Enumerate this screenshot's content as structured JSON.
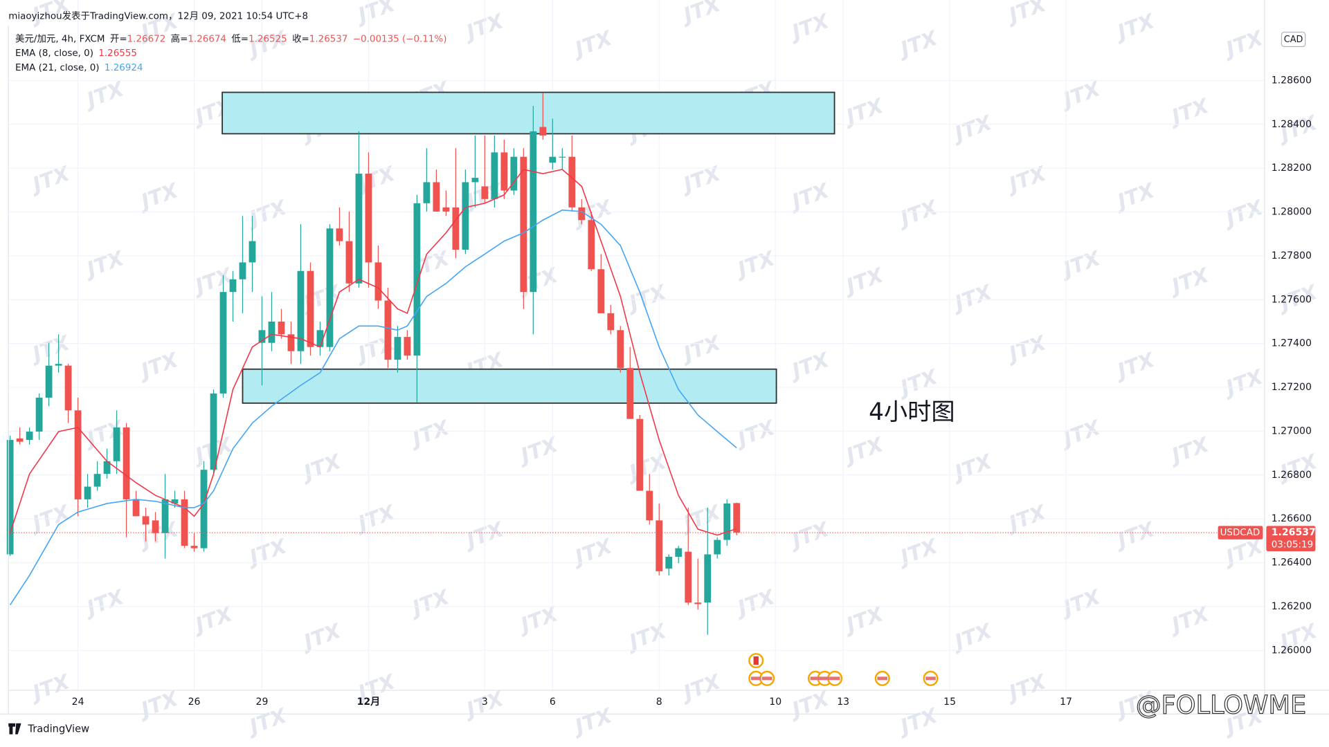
{
  "header": "miaoyizhou发表于TradingView.com，12月 09, 2021 10:54 UTC+8",
  "chart_data": {
    "type": "candlestick",
    "symbol_line": "美元/加元, 4h, FXCM",
    "ohlc_legend": [
      [
        "开=",
        "1.26672"
      ],
      [
        "高=",
        "1.26674"
      ],
      [
        "低=",
        "1.26525"
      ],
      [
        "收=",
        "1.26537"
      ]
    ],
    "change": "−0.00135 (−0.11%)",
    "currency": "CAD",
    "annotation": "4小时图",
    "watermark": "JTX",
    "up_color": "#26a69a",
    "down_color": "#ef5350",
    "grid": true,
    "xlim": [
      -0.17,
      129.5
    ],
    "ylim": [
      1.25818,
      1.28832
    ],
    "yticks": [
      {
        "value": 1.26,
        "label": "1.26000"
      },
      {
        "value": 1.262,
        "label": "1.26200"
      },
      {
        "value": 1.264,
        "label": "1.26400"
      },
      {
        "value": 1.266,
        "label": "1.26600"
      },
      {
        "value": 1.268,
        "label": "1.26800"
      },
      {
        "value": 1.27,
        "label": "1.27000"
      },
      {
        "value": 1.272,
        "label": "1.27200"
      },
      {
        "value": 1.274,
        "label": "1.27400"
      },
      {
        "value": 1.276,
        "label": "1.27600"
      },
      {
        "value": 1.278,
        "label": "1.27800"
      },
      {
        "value": 1.28,
        "label": "1.28000"
      },
      {
        "value": 1.282,
        "label": "1.28200"
      },
      {
        "value": 1.284,
        "label": "1.28400"
      },
      {
        "value": 1.286,
        "label": "1.28600"
      }
    ],
    "xticks": [
      {
        "value": 7,
        "label": "24"
      },
      {
        "value": 19,
        "label": "26"
      },
      {
        "value": 26,
        "label": "29"
      },
      {
        "value": 37,
        "label": "12月"
      },
      {
        "value": 49,
        "label": "3"
      },
      {
        "value": 56,
        "label": "6"
      },
      {
        "value": 67,
        "label": "8"
      },
      {
        "value": 79,
        "label": "10"
      },
      {
        "value": 86,
        "label": "13"
      },
      {
        "value": 97,
        "label": "15"
      },
      {
        "value": 109,
        "label": "17"
      }
    ],
    "open": [
      1.26438,
      1.26967,
      1.2696,
      1.26998,
      1.27153,
      1.27299,
      1.27299,
      1.27095,
      1.26689,
      1.26747,
      1.26805,
      1.26863,
      1.27017,
      1.26689,
      1.26612,
      1.26593,
      1.26535,
      1.2667,
      1.26689,
      1.26477,
      1.26466,
      1.26824,
      1.27172,
      1.27635,
      1.27693,
      1.2777,
      1.27403,
      1.27403,
      1.275,
      1.27442,
      1.27365,
      1.27731,
      1.27384,
      1.27384,
      1.27925,
      1.27867,
      1.27674,
      1.28175,
      1.2777,
      1.27596,
      1.27326,
      1.2743,
      1.27345,
      1.2804,
      1.28136,
      1.28021,
      1.28021,
      1.27828,
      1.28136,
      1.28117,
      1.28059,
      1.28272,
      1.28098,
      1.28252,
      1.27635,
      1.28388,
      1.28225,
      1.28249,
      1.28252,
      1.28021,
      1.27963,
      1.27739,
      1.27538,
      1.27461,
      1.27288,
      1.27056,
      1.26728,
      1.26593,
      1.26373,
      1.26427,
      1.2645,
      1.26218,
      1.26218,
      1.26438,
      1.26504,
      1.26672
    ],
    "high": [
      1.26979,
      1.27017,
      1.27017,
      1.27172,
      1.27403,
      1.27442,
      1.27307,
      1.27153,
      1.26805,
      1.26863,
      1.2692,
      1.27095,
      1.27037,
      1.26728,
      1.26651,
      1.26631,
      1.26805,
      1.26728,
      1.26728,
      1.26535,
      1.26863,
      1.2719,
      1.27712,
      1.27731,
      1.27982,
      1.27982,
      1.27615,
      1.27635,
      1.27558,
      1.275,
      1.27944,
      1.2777,
      1.275,
      1.27944,
      1.28021,
      1.28002,
      1.28368,
      1.28272,
      1.27847,
      1.27654,
      1.2748,
      1.27461,
      1.28078,
      1.28291,
      1.28194,
      1.28098,
      1.28291,
      1.28194,
      1.28349,
      1.28349,
      1.28349,
      1.2833,
      1.28291,
      1.28291,
      1.28484,
      1.28542,
      1.28426,
      1.28291,
      1.28349,
      1.28059,
      1.28002,
      1.27808,
      1.27576,
      1.2748,
      1.27384,
      1.27074,
      1.26805,
      1.2667,
      1.26438,
      1.26477,
      1.26651,
      1.26419,
      1.26651,
      1.26516,
      1.26689,
      1.26674
    ],
    "low": [
      1.26431,
      1.26939,
      1.26939,
      1.2696,
      1.27114,
      1.27267,
      1.27037,
      1.26612,
      1.26651,
      1.26728,
      1.26784,
      1.26805,
      1.26516,
      1.26612,
      1.26497,
      1.26497,
      1.26419,
      1.26651,
      1.26466,
      1.2645,
      1.2645,
      1.26805,
      1.27153,
      1.275,
      1.27538,
      1.27635,
      1.27209,
      1.27365,
      1.27422,
      1.27307,
      1.27307,
      1.27345,
      1.27345,
      1.27365,
      1.27847,
      1.27635,
      1.27654,
      1.27654,
      1.27558,
      1.27288,
      1.27267,
      1.27326,
      1.27132,
      1.28002,
      1.28002,
      1.27982,
      1.27789,
      1.27808,
      1.28021,
      1.2804,
      1.28021,
      1.28059,
      1.28078,
      1.27558,
      1.27442,
      1.2833,
      1.28194,
      1.28194,
      1.28002,
      1.27944,
      1.27731,
      1.27538,
      1.27442,
      1.27267,
      1.27056,
      1.26728,
      1.26574,
      1.26342,
      1.26342,
      1.26398,
      1.26207,
      1.26186,
      1.26071,
      1.26419,
      1.26477,
      1.26525
    ],
    "close": [
      1.2696,
      1.26952,
      1.26998,
      1.27153,
      1.27299,
      1.27307,
      1.27095,
      1.26689,
      1.26747,
      1.26805,
      1.26863,
      1.27017,
      1.26689,
      1.26612,
      1.26574,
      1.26535,
      1.26689,
      1.26689,
      1.26477,
      1.26466,
      1.26824,
      1.27172,
      1.27635,
      1.27693,
      1.2777,
      1.27867,
      1.27461,
      1.275,
      1.27442,
      1.27365,
      1.27731,
      1.27384,
      1.27461,
      1.27925,
      1.27867,
      1.27674,
      1.28175,
      1.2777,
      1.27596,
      1.27326,
      1.2743,
      1.27345,
      1.2804,
      1.28136,
      1.28002,
      1.28002,
      1.27828,
      1.28136,
      1.28156,
      1.28059,
      1.28272,
      1.28098,
      1.28252,
      1.27635,
      1.28368,
      1.28349,
      1.28252,
      1.28252,
      1.28021,
      1.27963,
      1.27739,
      1.27538,
      1.27461,
      1.27288,
      1.27056,
      1.26728,
      1.26593,
      1.26361,
      1.26427,
      1.26466,
      1.26218,
      1.26211,
      1.26438,
      1.26504,
      1.2667,
      1.26537
    ],
    "lines": [
      {
        "name": "EMA (8, close, 0)",
        "last_label": "1.26555",
        "color": "#f23645",
        "x": [
          0,
          2,
          5,
          7,
          10,
          13,
          15,
          18,
          19,
          20,
          21,
          23,
          25,
          27,
          30,
          32,
          34,
          36,
          38,
          40,
          41,
          43,
          45,
          47,
          49,
          51,
          53,
          55,
          57,
          59,
          61,
          63,
          65,
          67,
          69,
          71,
          73,
          75
        ],
        "values": [
          1.26535,
          1.26805,
          1.26998,
          1.27017,
          1.26863,
          1.26765,
          1.26707,
          1.26651,
          1.26612,
          1.2667,
          1.26805,
          1.2719,
          1.27384,
          1.27442,
          1.27422,
          1.27384,
          1.27635,
          1.27693,
          1.27654,
          1.27558,
          1.27538,
          1.27808,
          1.27905,
          1.28021,
          1.2804,
          1.28078,
          1.28194,
          1.28175,
          1.28194,
          1.28117,
          1.27867,
          1.27615,
          1.27267,
          1.2696,
          1.26707,
          1.26553,
          1.26526,
          1.26555
        ]
      },
      {
        "name": "EMA (21, close, 0)",
        "last_label": "1.26924",
        "color": "#42a5f5",
        "x": [
          0,
          2,
          5,
          7,
          10,
          13,
          15,
          18,
          19,
          20,
          21,
          23,
          25,
          27,
          30,
          32,
          34,
          36,
          38,
          40,
          41,
          43,
          45,
          47,
          49,
          51,
          53,
          55,
          57,
          59,
          61,
          63,
          65,
          67,
          69,
          71,
          73,
          75
        ],
        "values": [
          1.26207,
          1.26342,
          1.26574,
          1.26631,
          1.2667,
          1.26689,
          1.2668,
          1.26651,
          1.26651,
          1.2667,
          1.26728,
          1.2692,
          1.27037,
          1.27114,
          1.27209,
          1.27267,
          1.27422,
          1.2748,
          1.2748,
          1.27461,
          1.2748,
          1.27615,
          1.27674,
          1.2775,
          1.27808,
          1.27867,
          1.27905,
          1.27963,
          1.28009,
          1.28002,
          1.27944,
          1.27847,
          1.27635,
          1.27384,
          1.2719,
          1.27074,
          1.26998,
          1.26924
        ]
      }
    ],
    "zones": [
      {
        "xlim": [
          21.9,
          85.1
        ],
        "ylim": [
          1.28357,
          1.28546
        ],
        "color": "#b2ebf2"
      },
      {
        "xlim": [
          24.0,
          79.1
        ],
        "ylim": [
          1.27128,
          1.27283
        ],
        "color": "#b2ebf2"
      }
    ],
    "price_tag": {
      "symbol": "USDCAD",
      "price": "1.26537",
      "countdown": "03:05:19"
    }
  },
  "footer": {
    "logo": "TradingView",
    "watermark": "@FOLLOWME"
  }
}
